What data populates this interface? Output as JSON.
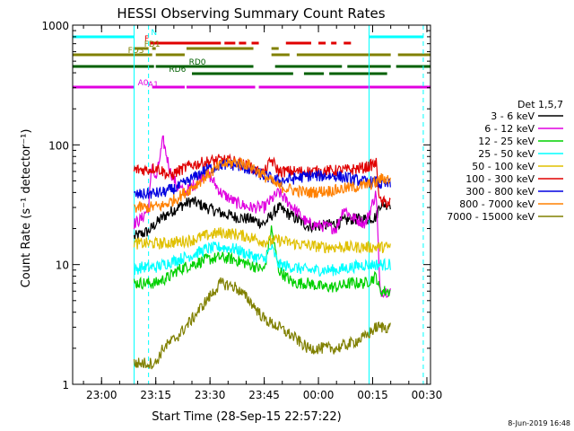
{
  "chart_data": {
    "type": "line",
    "title": "HESSI Observing Summary Count Rates",
    "xlabel": "Start Time (28-Sep-15 22:57:22)",
    "ylabel": "Count Rate (s⁻¹ detector⁻¹)",
    "yscale": "log",
    "ylim": [
      1,
      1000
    ],
    "xlim_minutes_from_start": [
      -5,
      94
    ],
    "xticks": [
      {
        "t": 3,
        "label": "23:00"
      },
      {
        "t": 18,
        "label": "23:15"
      },
      {
        "t": 33,
        "label": "23:30"
      },
      {
        "t": 48,
        "label": "23:45"
      },
      {
        "t": 63,
        "label": "00:00"
      },
      {
        "t": 78,
        "label": "00:15"
      },
      {
        "t": 93,
        "label": "00:30"
      }
    ],
    "yticks": [
      {
        "v": 1,
        "label": "1"
      },
      {
        "v": 10,
        "label": "10"
      },
      {
        "v": 100,
        "label": "100"
      },
      {
        "v": 1000,
        "label": "1000"
      }
    ],
    "legend_title": "Det 1,5,7",
    "legend_placement": "right",
    "series": [
      {
        "name": "3 - 6 keV",
        "color": "#000000",
        "t": [
          12,
          14,
          16,
          18,
          20,
          24,
          28,
          32,
          36,
          40,
          44,
          48,
          52,
          56,
          60,
          64,
          68,
          72,
          76,
          79,
          80,
          83
        ],
        "values": [
          17,
          18,
          19,
          22,
          25,
          30,
          34,
          30,
          27,
          25,
          24,
          22,
          30,
          25,
          21,
          21,
          22,
          24,
          24,
          25,
          32,
          32
        ]
      },
      {
        "name": "6 - 12 keV",
        "color": "#e000e0",
        "t": [
          12,
          14,
          16,
          17,
          18,
          20,
          22,
          24,
          26,
          28,
          32,
          36,
          40,
          44,
          48,
          50,
          52,
          56,
          60,
          64,
          68,
          70,
          72,
          76,
          79,
          80,
          83
        ],
        "values": [
          22,
          24,
          30,
          70,
          50,
          110,
          60,
          45,
          40,
          45,
          60,
          40,
          33,
          30,
          30,
          35,
          40,
          30,
          22,
          21,
          20,
          30,
          25,
          22,
          40,
          6,
          6
        ]
      },
      {
        "name": "12 - 25 keV",
        "color": "#00d000",
        "t": [
          12,
          14,
          16,
          18,
          20,
          22,
          24,
          28,
          32,
          36,
          40,
          44,
          48,
          50,
          52,
          56,
          60,
          64,
          68,
          72,
          76,
          79,
          80,
          83
        ],
        "values": [
          7,
          7,
          7,
          7,
          7.5,
          8,
          9,
          10,
          11,
          11.5,
          11,
          10,
          9,
          20,
          9,
          7,
          7,
          6.5,
          6.5,
          7,
          7,
          8,
          6,
          6
        ]
      },
      {
        "name": "25 - 50 keV",
        "color": "#00ffff",
        "t": [
          12,
          14,
          16,
          18,
          20,
          24,
          28,
          32,
          36,
          40,
          44,
          48,
          50,
          52,
          56,
          60,
          64,
          68,
          72,
          76,
          79,
          80,
          83
        ],
        "values": [
          9,
          9.5,
          9.5,
          9.5,
          10,
          11,
          12,
          13.5,
          14,
          13.5,
          12,
          11,
          14,
          10,
          9.5,
          9,
          9,
          9,
          9.5,
          10,
          10,
          10,
          10
        ]
      },
      {
        "name": "50 - 100 keV",
        "color": "#e0c000",
        "t": [
          12,
          16,
          20,
          24,
          28,
          32,
          36,
          40,
          44,
          48,
          52,
          56,
          60,
          64,
          68,
          72,
          76,
          79,
          80,
          83
        ],
        "values": [
          15,
          15,
          15,
          15.5,
          16,
          17.5,
          18.5,
          18,
          17,
          15.5,
          16,
          15,
          14.5,
          14,
          14,
          14,
          14,
          14,
          14,
          14
        ]
      },
      {
        "name": "100 - 300 keV",
        "color": "#e00000",
        "t": [
          12,
          16,
          18,
          20,
          22,
          24,
          28,
          32,
          36,
          40,
          44,
          46,
          48,
          50,
          52,
          56,
          60,
          64,
          68,
          72,
          76,
          79,
          80,
          83
        ],
        "values": [
          62,
          62,
          65,
          60,
          55,
          60,
          68,
          72,
          75,
          72,
          65,
          60,
          58,
          75,
          60,
          60,
          60,
          60,
          61,
          62,
          65,
          70,
          33,
          33
        ]
      },
      {
        "name": "300 - 800 keV",
        "color": "#0000e0",
        "t": [
          12,
          16,
          20,
          24,
          28,
          32,
          36,
          40,
          44,
          48,
          52,
          56,
          60,
          64,
          68,
          72,
          76,
          79,
          80,
          83
        ],
        "values": [
          38,
          39,
          40,
          44,
          52,
          62,
          68,
          68,
          62,
          55,
          50,
          52,
          55,
          55,
          55,
          52,
          49,
          49,
          47,
          47
        ]
      },
      {
        "name": "800 - 7000 keV",
        "color": "#ff8000",
        "t": [
          12,
          16,
          20,
          24,
          28,
          32,
          36,
          40,
          44,
          48,
          52,
          56,
          60,
          64,
          68,
          72,
          76,
          79,
          80,
          83
        ],
        "values": [
          30,
          30,
          31,
          36,
          44,
          55,
          68,
          72,
          68,
          55,
          45,
          42,
          40,
          41,
          42,
          44,
          46,
          48,
          52,
          52
        ]
      },
      {
        "name": "7000 - 15000 keV",
        "color": "#808000",
        "t": [
          12,
          16,
          18,
          20,
          24,
          28,
          32,
          36,
          40,
          44,
          48,
          52,
          56,
          60,
          64,
          68,
          72,
          76,
          79,
          80,
          82,
          83
        ],
        "values": [
          1.5,
          1.5,
          1.5,
          2,
          2.5,
          3.5,
          5,
          7,
          6.5,
          5,
          3.5,
          3,
          2.5,
          2,
          2,
          2,
          2.2,
          2.5,
          3,
          3,
          3,
          3
        ]
      }
    ],
    "flag_bars": [
      {
        "label": "N",
        "color": "#00ffff",
        "y": 41,
        "label_t": 17.5,
        "segments": [
          [
            -5,
            12
          ],
          [
            77,
            92
          ]
        ]
      },
      {
        "label": "F",
        "color": "#e00000",
        "y": 48,
        "label_t": 15.5,
        "segments": [
          [
            16.5,
            36
          ],
          [
            37,
            40
          ],
          [
            41,
            43
          ],
          [
            44.5,
            46.5
          ],
          [
            54,
            61
          ],
          [
            63,
            65
          ],
          [
            66.5,
            68
          ],
          [
            70,
            72
          ]
        ]
      },
      {
        "label": "FD1",
        "color": "#808000",
        "y": 54,
        "label_t": 17,
        "segments": [
          [
            12,
            16
          ],
          [
            17,
            18
          ],
          [
            26.5,
            45
          ],
          [
            50,
            52
          ]
        ]
      },
      {
        "label": "FD3",
        "color": "#808000",
        "y": 61,
        "label_t": 12.5,
        "segments": [
          [
            -5,
            17
          ],
          [
            18,
            26
          ],
          [
            50,
            55
          ],
          [
            57,
            83
          ],
          [
            85,
            94
          ]
        ]
      },
      {
        "label": "RD0",
        "color": "#006000",
        "y": 74,
        "label_t": 29.5,
        "segments": [
          [
            -5,
            17.5
          ],
          [
            18,
            45
          ],
          [
            51,
            69.5
          ],
          [
            71,
            83
          ],
          [
            84.5,
            94
          ]
        ]
      },
      {
        "label": "RD6",
        "color": "#006000",
        "y": 82,
        "label_t": 24,
        "segments": [
          [
            28,
            56
          ],
          [
            59,
            64.5
          ],
          [
            66,
            82
          ]
        ]
      },
      {
        "label": "A0",
        "color": "#e000e0",
        "y": 97,
        "label_t": 14.5,
        "segments": [
          [
            -5,
            12
          ],
          [
            17,
            26
          ],
          [
            26.5,
            45.5
          ],
          [
            46.5,
            94
          ]
        ]
      },
      {
        "label": "A1",
        "color": "#e000e0",
        "y": 99,
        "label_t": 17.3,
        "segments": []
      }
    ],
    "vertical_markers": [
      {
        "t": 12,
        "color": "#00ffff",
        "style": "solid"
      },
      {
        "t": 16,
        "color": "#00ffff",
        "style": "dashed"
      },
      {
        "t": 77,
        "color": "#00ffff",
        "style": "solid"
      },
      {
        "t": 92,
        "color": "#00ffff",
        "style": "dashed"
      }
    ]
  },
  "footer_date": "8-Jun-2019 16:48"
}
